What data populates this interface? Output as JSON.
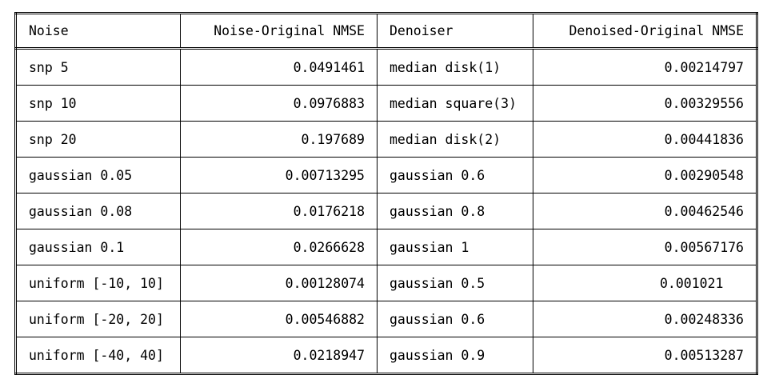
{
  "table": {
    "headers": [
      "Noise",
      "Noise-Original NMSE",
      "Denoiser",
      "Denoised-Original NMSE"
    ],
    "rows": [
      [
        "snp 5",
        "0.0491461",
        "median disk(1)",
        "0.00214797"
      ],
      [
        "snp 10",
        "0.0976883",
        "median square(3)",
        "0.00329556"
      ],
      [
        "snp 20",
        "0.197689",
        "median disk(2)",
        "0.00441836"
      ],
      [
        "gaussian 0.05",
        "0.00713295",
        "gaussian 0.6",
        "0.00290548"
      ],
      [
        "gaussian 0.08",
        "0.0176218",
        "gaussian 0.8",
        "0.00462546"
      ],
      [
        "gaussian 0.1",
        "0.0266628",
        "gaussian 1",
        "0.00567176"
      ],
      [
        "uniform [-10, 10]",
        "0.00128074",
        "gaussian 0.5",
        "0.001021"
      ],
      [
        "uniform [-20, 20]",
        "0.00546882",
        "gaussian 0.6",
        "0.00248336"
      ],
      [
        "uniform [-40, 40]",
        "0.0218947",
        "gaussian 0.9",
        "0.00513287"
      ]
    ]
  }
}
